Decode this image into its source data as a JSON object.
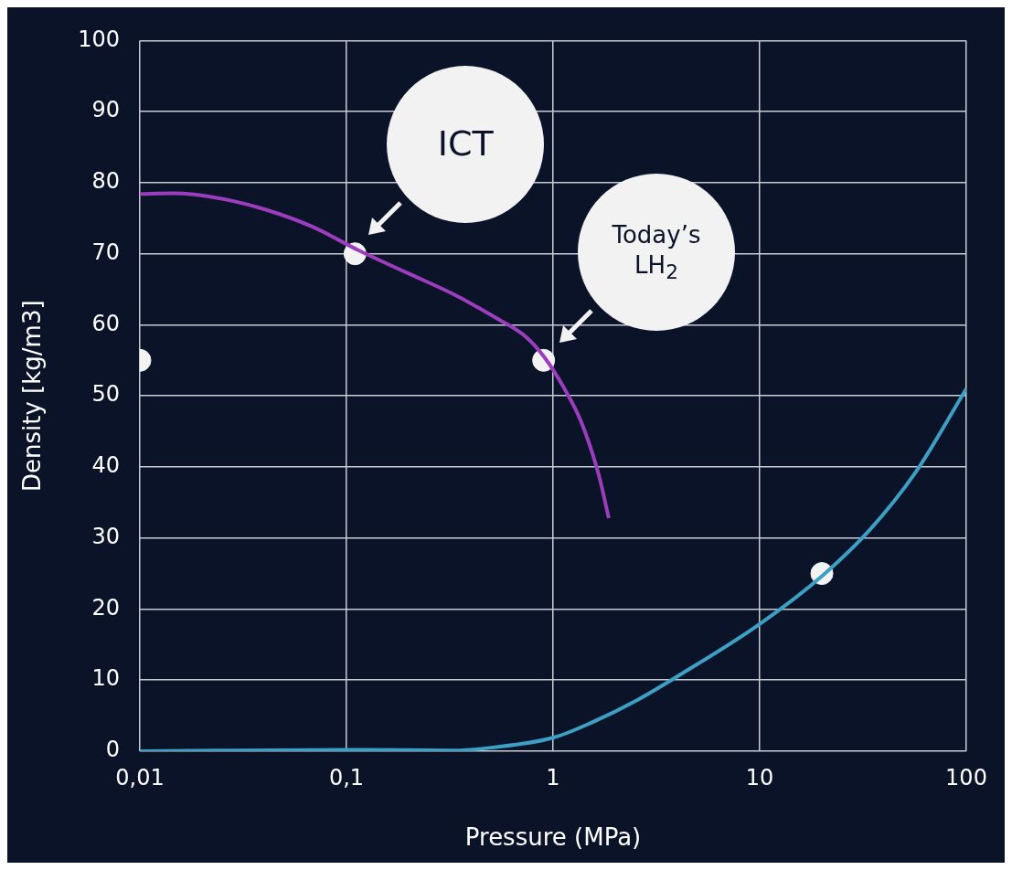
{
  "chart_data": {
    "type": "line",
    "xlabel": "Pressure (MPa)",
    "ylabel": "Density [kg/m3]",
    "xlim": [
      0.01,
      100
    ],
    "xticks": [
      {
        "value": 0.01,
        "label": "0,01"
      },
      {
        "value": 0.1,
        "label": "0,1"
      },
      {
        "value": 1,
        "label": "1"
      },
      {
        "value": 10,
        "label": "10"
      },
      {
        "value": 100,
        "label": "100"
      }
    ],
    "ylim": [
      0,
      100
    ],
    "yticks": [
      0,
      10,
      20,
      30,
      40,
      50,
      60,
      70,
      80,
      90,
      100
    ],
    "log": "x",
    "grid": true,
    "legend": false,
    "line_style": "solid",
    "series": [
      {
        "type": "line",
        "color": "#9b3dbd",
        "x": [
          0.01,
          0.0145,
          0.0243,
          0.0408,
          0.0685,
          0.114,
          0.197,
          0.33,
          0.543,
          0.74,
          0.91,
          1.12,
          1.37,
          1.67,
          1.86
        ],
        "values": [
          78.4,
          78.5,
          77.8,
          76.2,
          73.8,
          70.5,
          67.3,
          64.3,
          60.8,
          58.3,
          55.4,
          51.3,
          46.3,
          38.7,
          32.8
        ]
      },
      {
        "type": "line",
        "color": "#3d9fc4",
        "x": [
          0.01,
          0.114,
          0.33,
          0.5,
          1,
          1.53,
          2.56,
          4.25,
          10,
          20.3,
          34,
          57,
          100
        ],
        "values": [
          0,
          0.2,
          0.1,
          0.5,
          1.9,
          4,
          7.2,
          11,
          17.9,
          24.8,
          31.1,
          39.3,
          51
        ]
      },
      {
        "type": "scatter",
        "color": "#f2f2f2",
        "marker": "circle",
        "x": [
          0.01,
          0.11,
          0.9,
          20
        ],
        "values": [
          55,
          70,
          55,
          25
        ]
      }
    ],
    "annotations": [
      "ICT",
      "Today’s LH$_{2}$"
    ]
  }
}
